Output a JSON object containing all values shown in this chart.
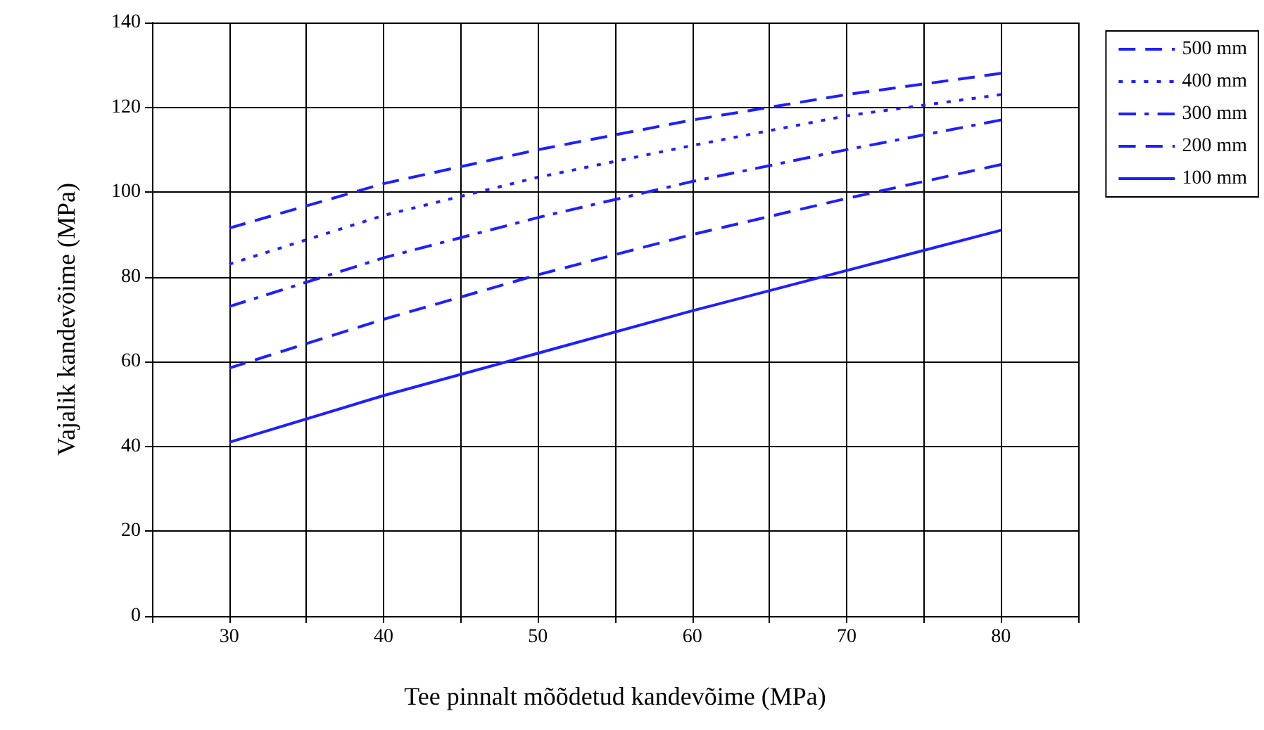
{
  "chart_data": {
    "type": "line",
    "xlabel": "Tee pinnalt mõõdetud kandevõime (MPa)",
    "ylabel": "Vajalik kandevõime (MPa)",
    "x": [
      30,
      40,
      50,
      60,
      70,
      80
    ],
    "series": [
      {
        "name": "500 mm",
        "color": "#1f1fff",
        "line_style": "dashed",
        "values": [
          91.5,
          102,
          110,
          117,
          123,
          128
        ]
      },
      {
        "name": "400 mm",
        "color": "#1f1fff",
        "line_style": "dotted",
        "values": [
          83,
          94.5,
          103.5,
          111,
          118,
          123
        ]
      },
      {
        "name": "300 mm",
        "color": "#1f1fff",
        "line_style": "dashdot",
        "values": [
          73,
          84.5,
          94,
          102.5,
          110,
          117
        ]
      },
      {
        "name": "200 mm",
        "color": "#1f1fff",
        "line_style": "dashed",
        "values": [
          58.5,
          70,
          80.5,
          90,
          98.5,
          106.5
        ]
      },
      {
        "name": "100 mm",
        "color": "#1f1fff",
        "line_style": "solid",
        "values": [
          41,
          52,
          62,
          72,
          81.5,
          91
        ]
      }
    ],
    "xlim": [
      25,
      85
    ],
    "xticks": [
      {
        "value": 25,
        "label": null
      },
      30,
      {
        "value": 35,
        "label": null
      },
      40,
      {
        "value": 45,
        "label": null
      },
      50,
      {
        "value": 55,
        "label": null
      },
      60,
      {
        "value": 65,
        "label": null
      },
      70,
      {
        "value": 75,
        "label": null
      },
      80,
      {
        "value": 85,
        "label": null
      }
    ],
    "ylim": [
      0,
      140
    ],
    "yticks": [
      0,
      20,
      40,
      60,
      80,
      100,
      120,
      140
    ],
    "grid": true,
    "legend": "right",
    "marker": "none"
  }
}
